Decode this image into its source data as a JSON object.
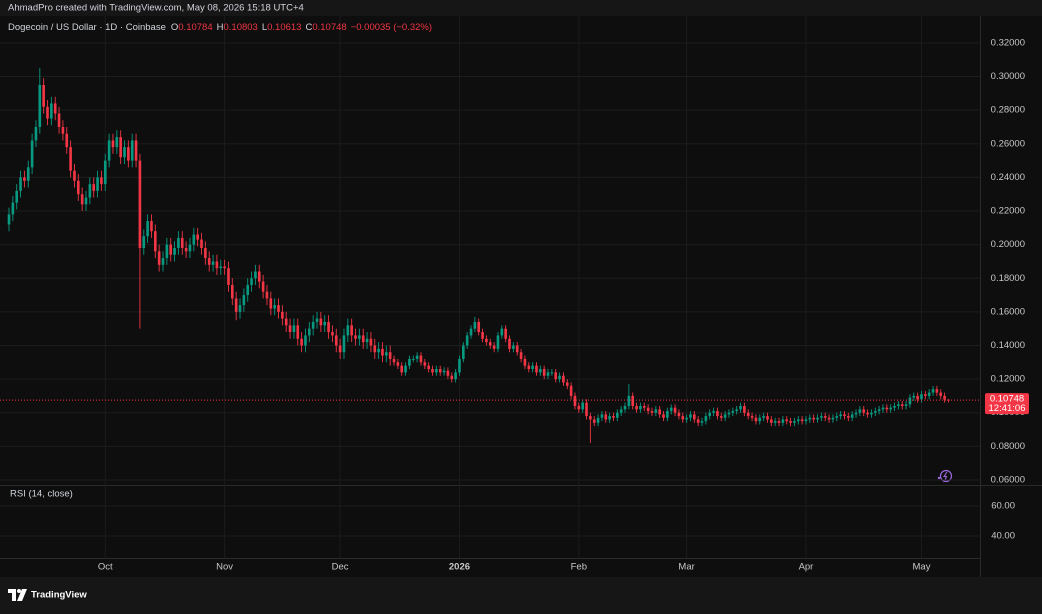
{
  "header": {
    "text": "AhmadPro created with TradingView.com, May 08, 2026 15:18 UTC+4"
  },
  "chart_data": {
    "type": "candlestick",
    "title": "Dogecoin / US Dollar · 1D · Coinbase",
    "legend_keys": [
      "O",
      "H",
      "L",
      "C"
    ],
    "change": "−0.00035 (−0.32%)",
    "countdown": "12:41:06",
    "up_color": "#089981",
    "down_color": "#f23645",
    "grid": true,
    "open": [
      0.212,
      0.218,
      0.225,
      0.232,
      0.24,
      0.238,
      0.246,
      0.262,
      0.27,
      0.295,
      0.282,
      0.275,
      0.284,
      0.278,
      0.27,
      0.266,
      0.258,
      0.244,
      0.238,
      0.23,
      0.224,
      0.228,
      0.236,
      0.232,
      0.24,
      0.236,
      0.25,
      0.262,
      0.258,
      0.264,
      0.252,
      0.258,
      0.25,
      0.262,
      0.25,
      0.198,
      0.205,
      0.214,
      0.208,
      0.196,
      0.188,
      0.192,
      0.2,
      0.194,
      0.198,
      0.204,
      0.198,
      0.196,
      0.2,
      0.206,
      0.203,
      0.198,
      0.192,
      0.188,
      0.19,
      0.186,
      0.187,
      0.186,
      0.176,
      0.168,
      0.16,
      0.164,
      0.17,
      0.176,
      0.18,
      0.184,
      0.178,
      0.172,
      0.168,
      0.162,
      0.164,
      0.16,
      0.156,
      0.152,
      0.148,
      0.152,
      0.144,
      0.14,
      0.146,
      0.15,
      0.154,
      0.156,
      0.152,
      0.154,
      0.148,
      0.146,
      0.14,
      0.136,
      0.146,
      0.152,
      0.146,
      0.144,
      0.146,
      0.142,
      0.144,
      0.14,
      0.136,
      0.138,
      0.134,
      0.136,
      0.132,
      0.13,
      0.128,
      0.124,
      0.128,
      0.132,
      0.132,
      0.134,
      0.13,
      0.128,
      0.126,
      0.124,
      0.126,
      0.124,
      0.125,
      0.122,
      0.12,
      0.124,
      0.132,
      0.14,
      0.146,
      0.15,
      0.154,
      0.148,
      0.144,
      0.142,
      0.14,
      0.138,
      0.146,
      0.15,
      0.144,
      0.138,
      0.14,
      0.136,
      0.132,
      0.128,
      0.126,
      0.128,
      0.124,
      0.126,
      0.122,
      0.124,
      0.124,
      0.12,
      0.122,
      0.118,
      0.116,
      0.11,
      0.104,
      0.102,
      0.106,
      0.098,
      0.096,
      0.094,
      0.097,
      0.099,
      0.096,
      0.098,
      0.097,
      0.1,
      0.102,
      0.104,
      0.11,
      0.104,
      0.102,
      0.104,
      0.103,
      0.101,
      0.1,
      0.102,
      0.099,
      0.097,
      0.101,
      0.103,
      0.1,
      0.098,
      0.096,
      0.097,
      0.099,
      0.096,
      0.094,
      0.095,
      0.098,
      0.1,
      0.101,
      0.098,
      0.097,
      0.099,
      0.1,
      0.101,
      0.102,
      0.104,
      0.1,
      0.098,
      0.097,
      0.095,
      0.097,
      0.098,
      0.096,
      0.094,
      0.095,
      0.094,
      0.096,
      0.095,
      0.094,
      0.095,
      0.096,
      0.095,
      0.096,
      0.097,
      0.096,
      0.097,
      0.098,
      0.097,
      0.096,
      0.097,
      0.098,
      0.099,
      0.098,
      0.097,
      0.099,
      0.1,
      0.102,
      0.1,
      0.099,
      0.1,
      0.101,
      0.102,
      0.103,
      0.102,
      0.103,
      0.104,
      0.105,
      0.104,
      0.105,
      0.109,
      0.11,
      0.108,
      0.111,
      0.11,
      0.112,
      0.114,
      0.112,
      0.11,
      0.10784
    ],
    "high": [
      0.222,
      0.229,
      0.236,
      0.244,
      0.244,
      0.25,
      0.266,
      0.274,
      0.305,
      0.299,
      0.286,
      0.288,
      0.288,
      0.282,
      0.274,
      0.27,
      0.262,
      0.248,
      0.242,
      0.234,
      0.232,
      0.24,
      0.24,
      0.244,
      0.244,
      0.254,
      0.266,
      0.266,
      0.268,
      0.268,
      0.262,
      0.262,
      0.266,
      0.266,
      0.254,
      0.209,
      0.218,
      0.218,
      0.212,
      0.2,
      0.196,
      0.204,
      0.204,
      0.202,
      0.208,
      0.208,
      0.202,
      0.204,
      0.21,
      0.21,
      0.207,
      0.202,
      0.196,
      0.194,
      0.194,
      0.191,
      0.191,
      0.19,
      0.18,
      0.172,
      0.168,
      0.174,
      0.18,
      0.184,
      0.188,
      0.188,
      0.182,
      0.176,
      0.172,
      0.168,
      0.168,
      0.164,
      0.16,
      0.156,
      0.156,
      0.156,
      0.148,
      0.15,
      0.154,
      0.158,
      0.16,
      0.16,
      0.158,
      0.158,
      0.152,
      0.15,
      0.144,
      0.15,
      0.156,
      0.156,
      0.15,
      0.15,
      0.15,
      0.148,
      0.148,
      0.144,
      0.142,
      0.142,
      0.14,
      0.14,
      0.134,
      0.132,
      0.13,
      0.13,
      0.134,
      0.134,
      0.136,
      0.136,
      0.132,
      0.13,
      0.128,
      0.128,
      0.128,
      0.127,
      0.127,
      0.124,
      0.126,
      0.134,
      0.142,
      0.148,
      0.152,
      0.157,
      0.156,
      0.15,
      0.146,
      0.144,
      0.142,
      0.148,
      0.152,
      0.152,
      0.146,
      0.142,
      0.142,
      0.138,
      0.134,
      0.13,
      0.13,
      0.13,
      0.128,
      0.128,
      0.126,
      0.126,
      0.126,
      0.124,
      0.124,
      0.12,
      0.118,
      0.112,
      0.106,
      0.108,
      0.108,
      0.1,
      0.098,
      0.099,
      0.101,
      0.101,
      0.1,
      0.1,
      0.102,
      0.104,
      0.106,
      0.117,
      0.112,
      0.106,
      0.106,
      0.106,
      0.105,
      0.103,
      0.104,
      0.104,
      0.101,
      0.103,
      0.105,
      0.105,
      0.102,
      0.1,
      0.099,
      0.101,
      0.101,
      0.098,
      0.097,
      0.1,
      0.102,
      0.103,
      0.103,
      0.1,
      0.101,
      0.102,
      0.103,
      0.104,
      0.106,
      0.106,
      0.102,
      0.1,
      0.099,
      0.099,
      0.1,
      0.1,
      0.098,
      0.097,
      0.097,
      0.098,
      0.098,
      0.097,
      0.097,
      0.098,
      0.098,
      0.098,
      0.099,
      0.099,
      0.099,
      0.1,
      0.1,
      0.099,
      0.099,
      0.1,
      0.101,
      0.101,
      0.1,
      0.101,
      0.102,
      0.104,
      0.104,
      0.102,
      0.102,
      0.103,
      0.104,
      0.105,
      0.105,
      0.105,
      0.106,
      0.107,
      0.107,
      0.107,
      0.111,
      0.112,
      0.112,
      0.113,
      0.113,
      0.114,
      0.116,
      0.116,
      0.114,
      0.112,
      0.10803
    ],
    "low": [
      0.208,
      0.214,
      0.221,
      0.228,
      0.234,
      0.234,
      0.242,
      0.258,
      0.266,
      0.278,
      0.271,
      0.271,
      0.274,
      0.266,
      0.262,
      0.254,
      0.24,
      0.234,
      0.226,
      0.22,
      0.22,
      0.224,
      0.228,
      0.228,
      0.232,
      0.232,
      0.246,
      0.254,
      0.254,
      0.248,
      0.248,
      0.246,
      0.246,
      0.246,
      0.15,
      0.194,
      0.201,
      0.204,
      0.192,
      0.184,
      0.184,
      0.188,
      0.19,
      0.19,
      0.194,
      0.194,
      0.192,
      0.192,
      0.196,
      0.199,
      0.194,
      0.188,
      0.184,
      0.184,
      0.182,
      0.182,
      0.182,
      0.172,
      0.164,
      0.155,
      0.156,
      0.16,
      0.166,
      0.172,
      0.176,
      0.174,
      0.168,
      0.164,
      0.158,
      0.158,
      0.156,
      0.152,
      0.148,
      0.144,
      0.144,
      0.14,
      0.136,
      0.136,
      0.142,
      0.146,
      0.15,
      0.148,
      0.148,
      0.144,
      0.142,
      0.136,
      0.132,
      0.132,
      0.142,
      0.142,
      0.14,
      0.14,
      0.138,
      0.138,
      0.136,
      0.132,
      0.132,
      0.13,
      0.13,
      0.128,
      0.128,
      0.126,
      0.122,
      0.122,
      0.126,
      0.13,
      0.13,
      0.128,
      0.126,
      0.124,
      0.122,
      0.122,
      0.122,
      0.122,
      0.12,
      0.118,
      0.118,
      0.122,
      0.13,
      0.138,
      0.144,
      0.148,
      0.146,
      0.142,
      0.14,
      0.138,
      0.136,
      0.136,
      0.144,
      0.142,
      0.136,
      0.136,
      0.134,
      0.13,
      0.126,
      0.124,
      0.124,
      0.122,
      0.122,
      0.12,
      0.12,
      0.122,
      0.118,
      0.118,
      0.116,
      0.114,
      0.108,
      0.102,
      0.1,
      0.1,
      0.096,
      0.082,
      0.092,
      0.092,
      0.095,
      0.094,
      0.094,
      0.095,
      0.095,
      0.098,
      0.1,
      0.102,
      0.102,
      0.1,
      0.1,
      0.101,
      0.099,
      0.098,
      0.098,
      0.097,
      0.095,
      0.095,
      0.099,
      0.098,
      0.096,
      0.094,
      0.094,
      0.095,
      0.094,
      0.092,
      0.092,
      0.093,
      0.096,
      0.098,
      0.096,
      0.095,
      0.095,
      0.097,
      0.098,
      0.099,
      0.1,
      0.098,
      0.096,
      0.095,
      0.093,
      0.093,
      0.095,
      0.094,
      0.092,
      0.092,
      0.092,
      0.092,
      0.093,
      0.092,
      0.092,
      0.093,
      0.093,
      0.093,
      0.094,
      0.094,
      0.094,
      0.095,
      0.095,
      0.094,
      0.094,
      0.095,
      0.096,
      0.096,
      0.095,
      0.095,
      0.097,
      0.098,
      0.098,
      0.097,
      0.097,
      0.098,
      0.099,
      0.1,
      0.1,
      0.1,
      0.101,
      0.102,
      0.102,
      0.102,
      0.103,
      0.107,
      0.106,
      0.106,
      0.108,
      0.108,
      0.11,
      0.11,
      0.108,
      0.106,
      0.10613
    ],
    "close": [
      0.218,
      0.225,
      0.232,
      0.24,
      0.238,
      0.246,
      0.262,
      0.27,
      0.295,
      0.282,
      0.275,
      0.284,
      0.278,
      0.27,
      0.266,
      0.258,
      0.244,
      0.238,
      0.23,
      0.224,
      0.228,
      0.236,
      0.232,
      0.24,
      0.236,
      0.25,
      0.262,
      0.258,
      0.264,
      0.252,
      0.258,
      0.25,
      0.262,
      0.25,
      0.198,
      0.205,
      0.214,
      0.208,
      0.196,
      0.188,
      0.192,
      0.2,
      0.194,
      0.198,
      0.204,
      0.198,
      0.196,
      0.2,
      0.206,
      0.203,
      0.198,
      0.192,
      0.188,
      0.19,
      0.186,
      0.187,
      0.186,
      0.176,
      0.168,
      0.16,
      0.164,
      0.17,
      0.176,
      0.18,
      0.184,
      0.178,
      0.172,
      0.168,
      0.162,
      0.164,
      0.16,
      0.156,
      0.152,
      0.148,
      0.152,
      0.144,
      0.14,
      0.146,
      0.15,
      0.154,
      0.156,
      0.152,
      0.154,
      0.148,
      0.146,
      0.14,
      0.136,
      0.146,
      0.152,
      0.146,
      0.144,
      0.146,
      0.142,
      0.144,
      0.14,
      0.136,
      0.138,
      0.134,
      0.136,
      0.132,
      0.13,
      0.128,
      0.124,
      0.128,
      0.132,
      0.132,
      0.134,
      0.13,
      0.128,
      0.126,
      0.124,
      0.126,
      0.124,
      0.125,
      0.122,
      0.12,
      0.124,
      0.132,
      0.14,
      0.146,
      0.15,
      0.154,
      0.148,
      0.144,
      0.142,
      0.14,
      0.138,
      0.146,
      0.15,
      0.144,
      0.138,
      0.14,
      0.136,
      0.132,
      0.128,
      0.126,
      0.128,
      0.124,
      0.126,
      0.122,
      0.124,
      0.124,
      0.12,
      0.122,
      0.118,
      0.116,
      0.11,
      0.104,
      0.102,
      0.106,
      0.098,
      0.096,
      0.094,
      0.097,
      0.099,
      0.096,
      0.098,
      0.097,
      0.1,
      0.102,
      0.104,
      0.11,
      0.104,
      0.102,
      0.104,
      0.103,
      0.101,
      0.1,
      0.102,
      0.099,
      0.097,
      0.101,
      0.103,
      0.1,
      0.098,
      0.096,
      0.097,
      0.099,
      0.096,
      0.094,
      0.095,
      0.098,
      0.1,
      0.101,
      0.098,
      0.097,
      0.099,
      0.1,
      0.101,
      0.102,
      0.104,
      0.1,
      0.098,
      0.097,
      0.095,
      0.097,
      0.098,
      0.096,
      0.094,
      0.095,
      0.094,
      0.096,
      0.095,
      0.094,
      0.095,
      0.096,
      0.095,
      0.096,
      0.097,
      0.096,
      0.097,
      0.098,
      0.097,
      0.096,
      0.097,
      0.098,
      0.099,
      0.098,
      0.097,
      0.099,
      0.1,
      0.102,
      0.1,
      0.099,
      0.1,
      0.101,
      0.102,
      0.103,
      0.102,
      0.103,
      0.104,
      0.105,
      0.104,
      0.105,
      0.109,
      0.11,
      0.108,
      0.111,
      0.11,
      0.112,
      0.114,
      0.112,
      0.11,
      0.10784,
      0.10748
    ],
    "xlim": [
      -2.34,
      252.2
    ],
    "xticks": [
      {
        "value": 25,
        "label": "Oct"
      },
      {
        "value": 56,
        "label": "Nov"
      },
      {
        "value": 86,
        "label": "Dec"
      },
      {
        "value": 117,
        "label": "2026"
      },
      {
        "value": 148,
        "label": "Feb"
      },
      {
        "value": 176,
        "label": "Mar"
      },
      {
        "value": 207,
        "label": "Apr"
      },
      {
        "value": 237,
        "label": "May"
      }
    ],
    "ylim": [
      0.057,
      0.3277
    ],
    "yticks": [
      {
        "value": 0.06,
        "label": "0.06000"
      },
      {
        "value": 0.08,
        "label": "0.08000"
      },
      {
        "value": 0.1,
        "label": "0.10000"
      },
      {
        "value": 0.12,
        "label": "0.12000"
      },
      {
        "value": 0.14,
        "label": "0.14000"
      },
      {
        "value": 0.16,
        "label": "0.16000"
      },
      {
        "value": 0.18,
        "label": "0.18000"
      },
      {
        "value": 0.2,
        "label": "0.20000"
      },
      {
        "value": 0.22,
        "label": "0.22000"
      },
      {
        "value": 0.24,
        "label": "0.24000"
      },
      {
        "value": 0.26,
        "label": "0.26000"
      },
      {
        "value": 0.28,
        "label": "0.28000"
      },
      {
        "value": 0.3,
        "label": "0.30000"
      },
      {
        "value": 0.32,
        "label": "0.32000"
      }
    ],
    "indicator": {
      "title": "RSI (14, close)",
      "ylim": [
        25.3,
        72
      ],
      "yticks": [
        {
          "value": 60,
          "label": "60.00"
        },
        {
          "value": 40,
          "label": "40.00"
        }
      ]
    }
  },
  "footer": {
    "brand": "TradingView"
  }
}
